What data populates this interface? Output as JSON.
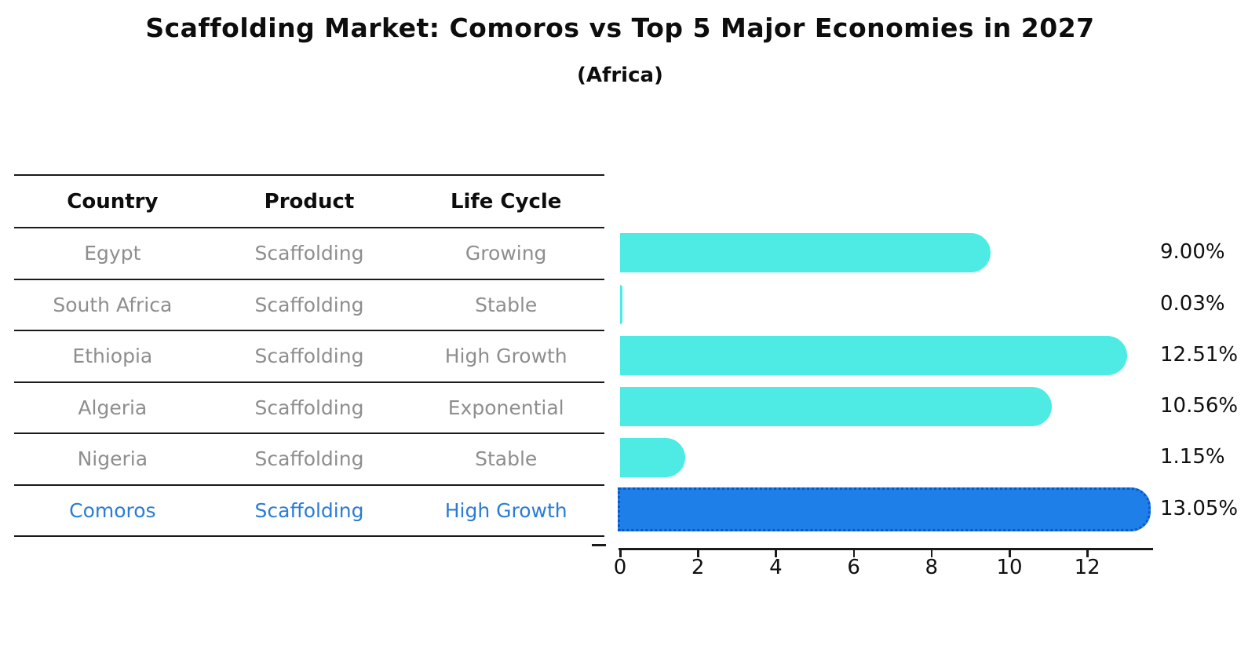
{
  "title": "Scaffolding Market: Comoros vs Top 5 Major Economies in 2027",
  "subtitle": "(Africa)",
  "table": {
    "headers": [
      "Country",
      "Product",
      "Life Cycle"
    ],
    "rows": [
      {
        "country": "Egypt",
        "product": "Scaffolding",
        "life_cycle": "Growing",
        "highlight": false
      },
      {
        "country": "South Africa",
        "product": "Scaffolding",
        "life_cycle": "Stable",
        "highlight": false
      },
      {
        "country": "Ethiopia",
        "product": "Scaffolding",
        "life_cycle": "High Growth",
        "highlight": false
      },
      {
        "country": "Algeria",
        "product": "Scaffolding",
        "life_cycle": "Exponential",
        "highlight": false
      },
      {
        "country": "Nigeria",
        "product": "Scaffolding",
        "life_cycle": "Stable",
        "highlight": false
      },
      {
        "country": "Comoros",
        "product": "Scaffolding",
        "life_cycle": "High Growth",
        "highlight": true
      }
    ]
  },
  "chart_data": {
    "type": "bar",
    "orientation": "horizontal",
    "title": "Scaffolding Market: Comoros vs Top 5 Major Economies in 2027",
    "subtitle": "(Africa)",
    "categories": [
      "Egypt",
      "South Africa",
      "Ethiopia",
      "Algeria",
      "Nigeria",
      "Comoros"
    ],
    "values": [
      9.0,
      0.03,
      12.51,
      10.56,
      1.15,
      13.05
    ],
    "value_labels": [
      "9.00%",
      "0.03%",
      "12.51%",
      "10.56%",
      "1.15%",
      "13.05%"
    ],
    "x_ticks": [
      0,
      2,
      4,
      6,
      8,
      10,
      12
    ],
    "xlim": [
      0,
      13.7
    ],
    "xlabel": "",
    "ylabel": "",
    "grid": false,
    "legend": "none",
    "highlight_index": 5,
    "colors": {
      "bar": "#4debe3",
      "highlight_bar": "#1e7fe9",
      "highlight_edge": "#0d55cc",
      "highlight_text": "#2b7cd3",
      "body_text": "#8e8e8e",
      "axis": "#1a1a1a"
    }
  }
}
